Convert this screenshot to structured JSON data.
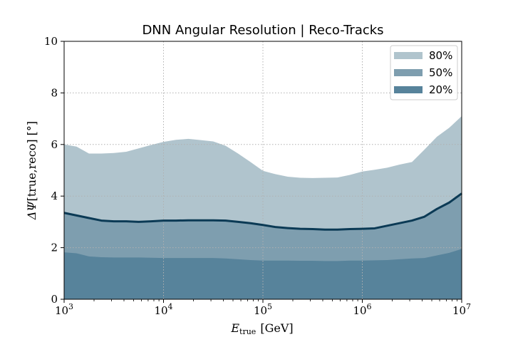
{
  "chart_data": {
    "type": "area",
    "title": "DNN Angular Resolution | Reco-Tracks",
    "xlabel_main": "E",
    "xlabel_sub": "true",
    "xlabel_unit": "[GeV]",
    "ylabel_main": "ΔΨ",
    "ylabel_rest": "[true,reco] [°]",
    "x_scale": "log",
    "xlim": [
      1000,
      10000000
    ],
    "ylim": [
      0,
      10
    ],
    "x_ticks": [
      1000,
      10000,
      100000,
      1000000,
      10000000
    ],
    "x_tick_exponents": [
      "3",
      "4",
      "5",
      "6",
      "7"
    ],
    "x_tick_base": "10",
    "y_ticks": [
      0,
      2,
      4,
      6,
      8,
      10
    ],
    "y_tick_labels": [
      "0",
      "2",
      "4",
      "6",
      "8",
      "10"
    ],
    "grid": true,
    "legend_position": "top-right",
    "log10_x": [
      3.0,
      3.125,
      3.25,
      3.375,
      3.5,
      3.625,
      3.75,
      3.875,
      4.0,
      4.125,
      4.25,
      4.375,
      4.5,
      4.625,
      4.75,
      4.875,
      5.0,
      5.125,
      5.25,
      5.375,
      5.5,
      5.625,
      5.75,
      5.875,
      6.0,
      6.125,
      6.25,
      6.375,
      6.5,
      6.625,
      6.75,
      6.875,
      7.0
    ],
    "series": [
      {
        "name": "80%",
        "color": "#b0c4cd",
        "values": [
          6.0,
          5.92,
          5.65,
          5.65,
          5.67,
          5.72,
          5.85,
          5.98,
          6.1,
          6.18,
          6.22,
          6.17,
          6.12,
          5.95,
          5.65,
          5.32,
          4.98,
          4.85,
          4.75,
          4.71,
          4.7,
          4.71,
          4.72,
          4.82,
          4.95,
          5.02,
          5.1,
          5.22,
          5.32,
          5.8,
          6.3,
          6.65,
          7.1
        ]
      },
      {
        "name": "50%",
        "color": "#7e9eaf",
        "line": "#0b3a55",
        "values": [
          3.35,
          3.25,
          3.15,
          3.05,
          3.02,
          3.02,
          3.0,
          3.02,
          3.05,
          3.05,
          3.06,
          3.06,
          3.06,
          3.05,
          3.0,
          2.95,
          2.88,
          2.8,
          2.76,
          2.73,
          2.72,
          2.7,
          2.7,
          2.72,
          2.73,
          2.75,
          2.85,
          2.95,
          3.05,
          3.2,
          3.5,
          3.75,
          4.1
        ]
      },
      {
        "name": "20%",
        "color": "#57839b",
        "values": [
          1.82,
          1.78,
          1.66,
          1.63,
          1.62,
          1.62,
          1.62,
          1.61,
          1.6,
          1.6,
          1.6,
          1.6,
          1.6,
          1.58,
          1.55,
          1.52,
          1.5,
          1.5,
          1.5,
          1.49,
          1.49,
          1.48,
          1.48,
          1.5,
          1.5,
          1.51,
          1.52,
          1.55,
          1.58,
          1.6,
          1.7,
          1.8,
          1.95
        ]
      }
    ]
  }
}
